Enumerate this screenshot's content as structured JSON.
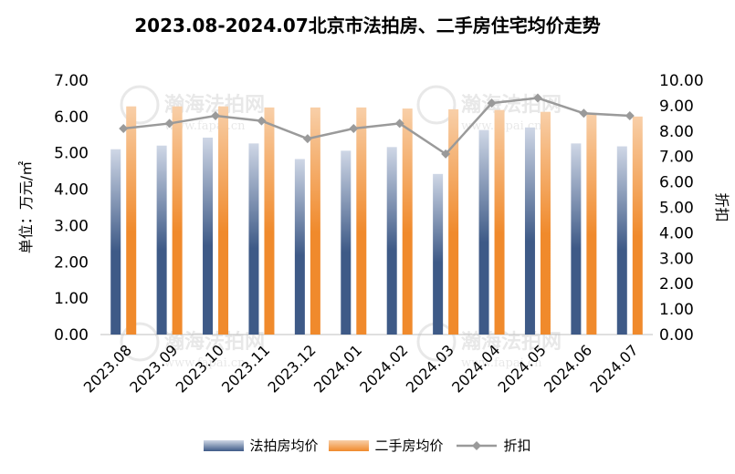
{
  "title": "2023.08-2024.07北京市法拍房、二手房住宅均价走势",
  "watermark": {
    "name": "瀚海法拍网",
    "url": "www.fapai.cn"
  },
  "colors": {
    "auction_top": "#cfd7e6",
    "auction_bottom": "#3e5a87",
    "secondhand_top": "#f8cfa8",
    "secondhand_bottom": "#f08a2c",
    "discount_line": "#9a9a9a",
    "discount_marker": "#9a9a9a",
    "axis": "#bfbfbf"
  },
  "chart_data": {
    "type": "bar",
    "title": "2023.08-2024.07北京市法拍房、二手房住宅均价走势",
    "categories": [
      "2023.08",
      "2023.09",
      "2023.10",
      "2023.11",
      "2023.12",
      "2024.01",
      "2024.02",
      "2024.03",
      "2024.04",
      "2024.05",
      "2024.06",
      "2024.07"
    ],
    "ylabel": "单位：万元/㎡",
    "ylim": [
      0,
      7
    ],
    "y_ticks": [
      "0.00",
      "1.00",
      "2.00",
      "3.00",
      "4.00",
      "5.00",
      "6.00",
      "7.00"
    ],
    "y2label": "折扣",
    "y2lim": [
      0,
      10
    ],
    "y2_ticks": [
      "0.00",
      "1.00",
      "2.00",
      "3.00",
      "4.00",
      "5.00",
      "6.00",
      "7.00",
      "8.00",
      "9.00",
      "10.00"
    ],
    "grid": false,
    "legend_position": "bottom",
    "series": [
      {
        "name": "法拍房均价",
        "type": "bar",
        "axis": "left",
        "values": [
          5.1,
          5.2,
          5.42,
          5.26,
          4.83,
          5.06,
          5.16,
          4.42,
          5.63,
          5.7,
          5.26,
          5.18
        ]
      },
      {
        "name": "二手房均价",
        "type": "bar",
        "axis": "left",
        "values": [
          6.28,
          6.28,
          6.28,
          6.25,
          6.25,
          6.25,
          6.22,
          6.2,
          6.18,
          6.13,
          6.06,
          6.0
        ]
      },
      {
        "name": "折扣",
        "type": "line",
        "axis": "right",
        "values": [
          8.1,
          8.3,
          8.6,
          8.4,
          7.7,
          8.1,
          8.3,
          7.1,
          9.1,
          9.3,
          8.7,
          8.6
        ]
      }
    ]
  }
}
